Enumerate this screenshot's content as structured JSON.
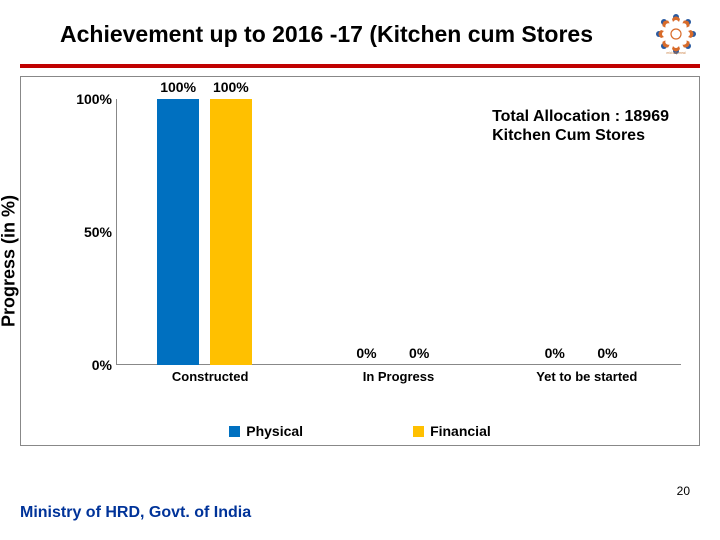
{
  "title": "Achievement up to 2016 -17 (Kitchen cum Stores",
  "rule_color": "#c00000",
  "footer": "Ministry of HRD, Govt. of India",
  "page_number": "20",
  "annotation_line1": "Total Allocation : 18969",
  "annotation_line2": "Kitchen Cum Stores",
  "chart": {
    "type": "bar",
    "ylabel": "Progress (in %)",
    "ylim_min": 0,
    "ylim_max": 100,
    "yticks": [
      {
        "pos": 0,
        "label": "0%"
      },
      {
        "pos": 50,
        "label": "50%"
      },
      {
        "pos": 100,
        "label": "100%"
      }
    ],
    "categories": [
      "Constructed",
      "In Progress",
      "Yet to be started"
    ],
    "series": [
      {
        "name": "Physical",
        "color": "#0070c0",
        "values": [
          100,
          0,
          0
        ]
      },
      {
        "name": "Financial",
        "color": "#ffc000",
        "values": [
          100,
          0,
          0
        ]
      }
    ],
    "value_labels": [
      [
        "100%",
        "100%"
      ],
      [
        "0%",
        "0%"
      ],
      [
        "0%",
        "0%"
      ]
    ],
    "background_color": "#ffffff",
    "axis_color": "#888888",
    "text_color": "#000000"
  },
  "logo": {
    "outer_color": "#d86b2a",
    "dot_color": "#2a5aa0",
    "caption_color": "#c77a3a"
  }
}
